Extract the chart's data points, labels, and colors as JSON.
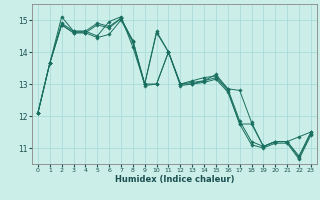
{
  "xlabel": "Humidex (Indice chaleur)",
  "bg_color": "#cceee8",
  "grid_color": "#aaddda",
  "line_color": "#1a7060",
  "marker_color": "#1a7060",
  "xlim": [
    -0.5,
    23.5
  ],
  "ylim": [
    10.5,
    15.5
  ],
  "yticks": [
    11,
    12,
    13,
    14,
    15
  ],
  "xticks": [
    0,
    1,
    2,
    3,
    4,
    5,
    6,
    7,
    8,
    9,
    10,
    11,
    12,
    13,
    14,
    15,
    16,
    17,
    18,
    19,
    20,
    21,
    22,
    23
  ],
  "series": [
    [
      12.1,
      13.65,
      15.1,
      14.65,
      14.65,
      14.5,
      14.95,
      15.1,
      14.15,
      13.0,
      13.0,
      14.0,
      13.0,
      13.0,
      13.1,
      13.3,
      12.85,
      11.85,
      11.2,
      11.05,
      11.2,
      11.2,
      10.75,
      11.5
    ],
    [
      12.1,
      13.65,
      14.9,
      14.65,
      14.65,
      14.9,
      14.8,
      15.05,
      14.35,
      13.0,
      14.65,
      14.0,
      13.0,
      13.1,
      13.2,
      13.25,
      12.85,
      12.8,
      11.8,
      11.05,
      11.2,
      11.2,
      11.35,
      11.5
    ],
    [
      12.1,
      13.65,
      14.85,
      14.6,
      14.6,
      14.85,
      14.75,
      15.05,
      14.35,
      13.0,
      14.6,
      14.0,
      13.0,
      13.05,
      13.1,
      13.2,
      12.8,
      11.75,
      11.75,
      11.05,
      11.2,
      11.2,
      10.7,
      11.45
    ],
    [
      12.1,
      13.65,
      14.85,
      14.6,
      14.6,
      14.45,
      14.55,
      15.0,
      14.3,
      12.95,
      13.0,
      14.0,
      12.95,
      13.0,
      13.05,
      13.15,
      12.75,
      11.75,
      11.1,
      11.0,
      11.15,
      11.15,
      10.65,
      11.4
    ]
  ]
}
